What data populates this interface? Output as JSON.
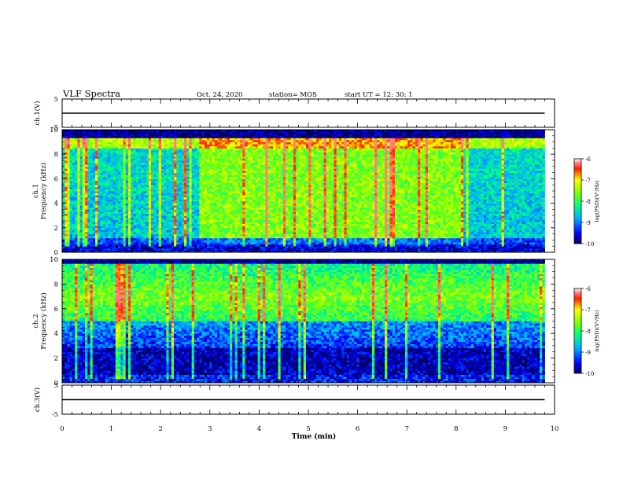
{
  "header": {
    "title": "VLF Spectra",
    "date": "Oct. 24, 2020",
    "station": "station= MOS",
    "start_ut": "start  UT  =   12: 30: 1"
  },
  "chart_data": [
    {
      "type": "line",
      "panel": "ch1-waveform",
      "ylabel": "ch.1(V)",
      "ylim": [
        -5,
        5
      ],
      "y_ticks": [
        "5",
        "-5"
      ],
      "series": [
        {
          "x": [
            0,
            9.8
          ],
          "y": [
            0,
            0
          ]
        }
      ]
    },
    {
      "type": "heatmap",
      "panel": "ch1-spectrogram",
      "ylabel": "ch.1\nFrequency (kHz)",
      "ylim": [
        0,
        10
      ],
      "xlim": [
        0,
        10
      ],
      "y_ticks": [
        "0",
        "2",
        "4",
        "6",
        "8",
        "10"
      ],
      "data_extent_min": 9.8,
      "colorbar": {
        "label": "log(PSD)(V²/Hz)",
        "range": [
          -10,
          -6
        ],
        "ticks": [
          "-6",
          "-7",
          "-8",
          "-9",
          "-10"
        ]
      }
    },
    {
      "type": "heatmap",
      "panel": "ch2-spectrogram",
      "ylabel": "ch.2\nFrequency (kHz)",
      "ylim": [
        0,
        10
      ],
      "xlim": [
        0,
        10
      ],
      "y_ticks": [
        "0",
        "2",
        "4",
        "6",
        "8",
        "10"
      ],
      "data_extent_min": 9.8,
      "colorbar": {
        "label": "log(PSD)(V²/Hz)",
        "range": [
          -10,
          -6
        ],
        "ticks": [
          "-6",
          "-7",
          "-8",
          "-9",
          "-10"
        ]
      }
    },
    {
      "type": "line",
      "panel": "ch3-waveform",
      "ylabel": "ch.3(V)",
      "ylim": [
        -5,
        5
      ],
      "y_ticks": [
        "5",
        "-5"
      ],
      "series": [
        {
          "x": [
            0,
            9.8
          ],
          "y": [
            0,
            0
          ]
        }
      ]
    }
  ],
  "x_axis": {
    "label": "Time (min)",
    "ticks": [
      "0",
      "1",
      "2",
      "3",
      "4",
      "5",
      "6",
      "7",
      "8",
      "9",
      "10"
    ]
  }
}
